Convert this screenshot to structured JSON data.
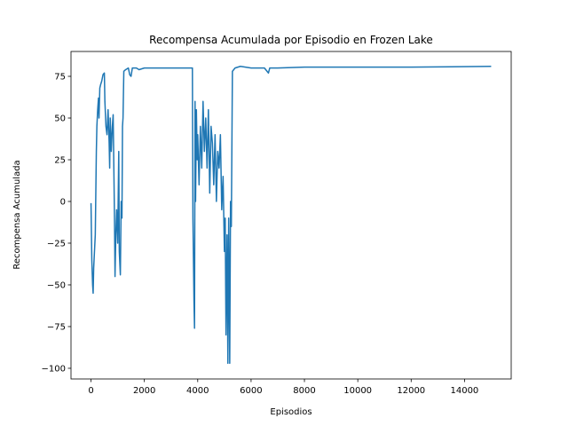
{
  "chart_data": {
    "type": "line",
    "title": "Recompensa Acumulada por Episodio en Frozen Lake",
    "x_label": "Episodios",
    "y_label": "Recompensa Acumulada",
    "xlim": [
      -750,
      15750
    ],
    "ylim": [
      -106.4,
      89.9
    ],
    "xticks": [
      0,
      2000,
      4000,
      6000,
      8000,
      10000,
      12000,
      14000
    ],
    "yticks": [
      {
        "value": -100,
        "label": "−100"
      },
      {
        "value": -75,
        "label": "−75"
      },
      {
        "value": -50,
        "label": "−50"
      },
      {
        "value": -25,
        "label": "−25"
      },
      0,
      25,
      50,
      75
    ],
    "series": [
      {
        "color": "#1f77b4",
        "x": [
          0,
          30,
          60,
          80,
          100,
          130,
          160,
          180,
          200,
          220,
          250,
          280,
          300,
          330,
          360,
          400,
          450,
          500,
          520,
          560,
          600,
          640,
          680,
          700,
          720,
          760,
          800,
          830,
          860,
          880,
          900,
          930,
          960,
          1000,
          1040,
          1060,
          1100,
          1130,
          1160,
          1180,
          1200,
          1230,
          1300,
          1400,
          1450,
          1500,
          1550,
          1700,
          1800,
          2000,
          2500,
          3000,
          3500,
          3800,
          3820,
          3860,
          3880,
          3900,
          3920,
          3950,
          3980,
          4000,
          4050,
          4100,
          4150,
          4200,
          4250,
          4300,
          4350,
          4400,
          4450,
          4500,
          4550,
          4600,
          4650,
          4700,
          4750,
          4800,
          4850,
          4900,
          4950,
          5000,
          5030,
          5060,
          5100,
          5130,
          5160,
          5200,
          5230,
          5260,
          5300,
          5400,
          5600,
          6000,
          6500,
          6650,
          6700,
          7000,
          8000,
          10000,
          12000,
          14999
        ],
        "values": [
          -1,
          -35,
          -50,
          -55,
          -40,
          -30,
          -20,
          5,
          30,
          45,
          55,
          62,
          50,
          68,
          70,
          72,
          76,
          77,
          60,
          45,
          40,
          55,
          35,
          20,
          50,
          30,
          45,
          52,
          15,
          -10,
          -45,
          -20,
          -5,
          -25,
          30,
          -30,
          -44,
          0,
          -10,
          45,
          50,
          78,
          79,
          80,
          76,
          75,
          80,
          80,
          79,
          80,
          80,
          80,
          80,
          80,
          -10,
          -60,
          -76,
          60,
          0,
          55,
          25,
          40,
          10,
          45,
          20,
          60,
          30,
          50,
          20,
          55,
          5,
          45,
          35,
          10,
          40,
          0,
          30,
          20,
          40,
          -5,
          15,
          -30,
          -10,
          -80,
          -20,
          -97,
          -10,
          -97,
          0,
          -15,
          78,
          80,
          81,
          80,
          80,
          77,
          80,
          80,
          80.5,
          80.5,
          80.5,
          81
        ]
      }
    ]
  }
}
